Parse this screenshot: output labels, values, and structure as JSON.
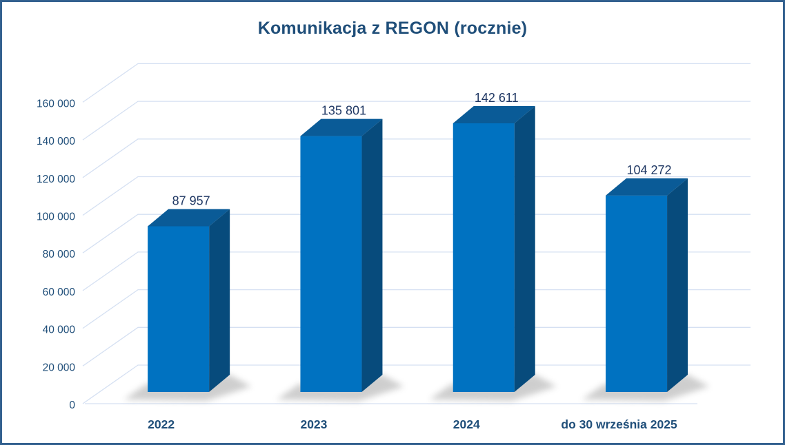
{
  "window": {
    "background": "#FFFFFF",
    "border_color": "#33618F"
  },
  "chart_data": {
    "type": "bar",
    "projection": "3d",
    "title": "Komunikacja z REGON (rocznie)",
    "categories": [
      "2022",
      "2023",
      "2024",
      "do 30 września 2025"
    ],
    "values": [
      87957,
      135801,
      142611,
      104272
    ],
    "value_labels": [
      "87 957",
      "135 801",
      "142 611",
      "104 272"
    ],
    "y_axis": {
      "min": 0,
      "max": 160000,
      "step": 20000,
      "ticks": [
        0,
        20000,
        40000,
        60000,
        80000,
        100000,
        120000,
        140000,
        160000
      ],
      "tick_labels": [
        "0",
        "20 000",
        "40 000",
        "60 000",
        "80 000",
        "100 000",
        "120 000",
        "140 000",
        "160 000"
      ]
    },
    "grid": true,
    "legend": false,
    "colors": {
      "bar_front": "#0072C1",
      "bar_top": "#0A5B97",
      "bar_side": "#074B7C",
      "gridline": "#D5E0F2",
      "title_text": "#1F4E79",
      "axis_text": "#1F4E79",
      "data_label_text": "#203864",
      "shadow": "#8C8C8C"
    }
  }
}
